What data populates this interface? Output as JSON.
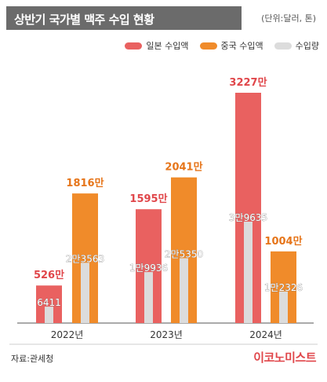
{
  "header": {
    "title": "상반기 국가별 맥주 수입 현황",
    "unit": "(단위:달러, 톤)"
  },
  "colors": {
    "japan": "#e96160",
    "china": "#f08b2a",
    "volume": "#dcdcdc",
    "title_bg": "#6b6b6b",
    "brand": "#e0464a"
  },
  "footer": {
    "source": "자료:관세청",
    "brand": "이코노미스트"
  },
  "chart_data": {
    "type": "bar",
    "categories": [
      "2022년",
      "2023년",
      "2024년"
    ],
    "series": [
      {
        "name": "일본 수입액",
        "color": "#e96160",
        "values": [
          5260000,
          15950000,
          32270000
        ],
        "labels": [
          "526만",
          "1595만",
          "3227만"
        ]
      },
      {
        "name": "중국 수입액",
        "color": "#f08b2a",
        "values": [
          18160000,
          20410000,
          10040000
        ],
        "labels": [
          "1816만",
          "2041만",
          "1004만"
        ]
      },
      {
        "name": "수입량",
        "color": "#dcdcdc",
        "values": [
          [
            6411,
            23563
          ],
          [
            19936,
            25350
          ],
          [
            39635,
            12326
          ]
        ],
        "labels": [
          [
            "6411",
            "2만3563"
          ],
          [
            "1만9936",
            "2만5350"
          ],
          [
            "3만9635",
            "1만2326"
          ]
        ]
      }
    ],
    "legend_position": "top-right",
    "grid": false
  }
}
